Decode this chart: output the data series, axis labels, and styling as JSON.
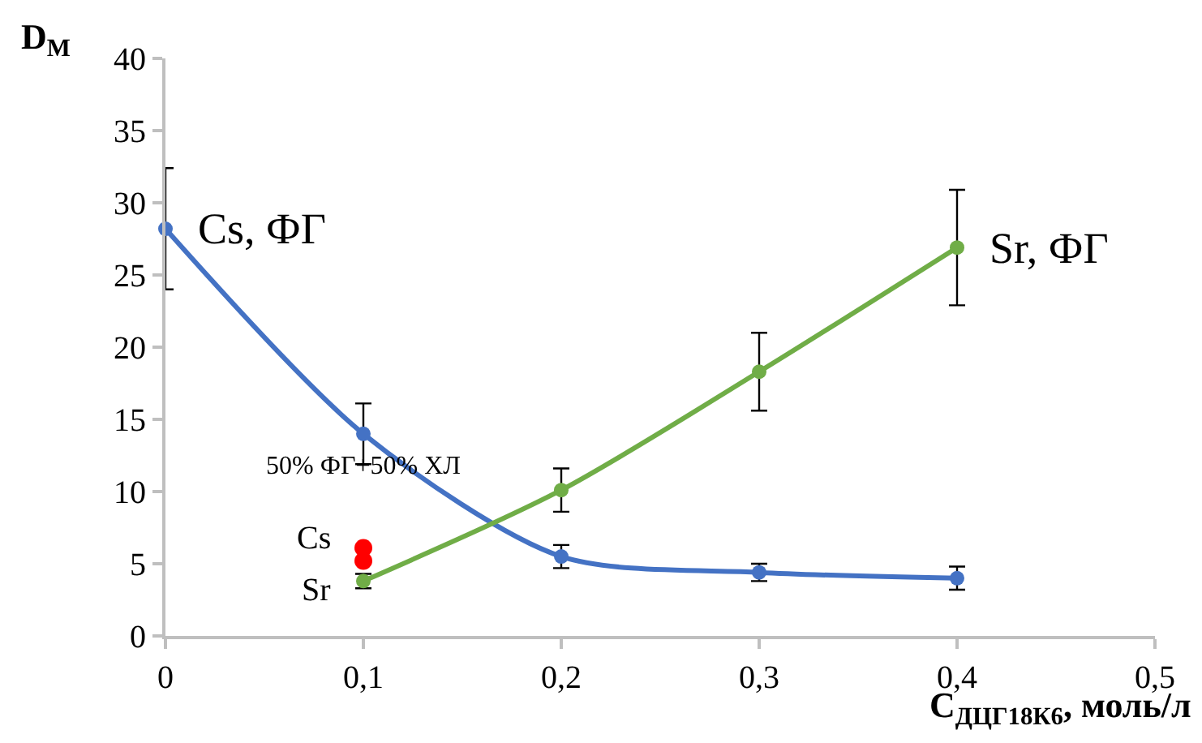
{
  "chart_data": {
    "type": "line",
    "ylabel": "D$_{М}$",
    "xlabel": "C$_{ДЦГ18К6}$, моль/л",
    "xlim": [
      0,
      0.5
    ],
    "xticks": [
      0,
      {
        "value": 0.1,
        "label": "0,1"
      },
      {
        "value": 0.2,
        "label": "0,2"
      },
      {
        "value": 0.3,
        "label": "0,3"
      },
      {
        "value": 0.4,
        "label": "0,4"
      },
      {
        "value": 0.5,
        "label": "0,5"
      }
    ],
    "ylim": [
      0,
      40
    ],
    "yticks": [
      0,
      5,
      10,
      15,
      20,
      25,
      30,
      35,
      40
    ],
    "grid": false,
    "legend": false,
    "marker": "circle",
    "line_style": "solid",
    "series": [
      {
        "name": "Cs, ФГ",
        "color": "#4472c4",
        "x": [
          0,
          0.1,
          0.2,
          0.3,
          0.4
        ],
        "values": [
          28.2,
          14.0,
          5.5,
          4.4,
          4.0
        ],
        "errors": [
          4.2,
          2.1,
          0.8,
          0.6,
          0.8
        ]
      },
      {
        "name": "Sr, ФГ",
        "color": "#70ad47",
        "x": [
          0.1,
          0.2,
          0.3,
          0.4
        ],
        "values": [
          3.8,
          10.1,
          18.3,
          26.9
        ],
        "errors": [
          0.5,
          1.5,
          2.7,
          4.0
        ]
      },
      {
        "type": "scatter",
        "color": "#ff0000",
        "x": [
          0.1,
          0.1
        ],
        "values": [
          6.1,
          5.2
        ]
      }
    ],
    "annotations": [
      "50% ФГ+50% ХЛ",
      "Cs",
      "Sr"
    ]
  }
}
